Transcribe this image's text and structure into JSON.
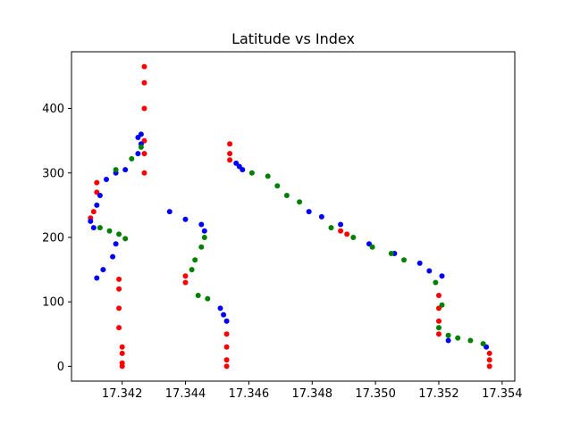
{
  "chart_data": {
    "type": "scatter",
    "title": "Latitude vs Index",
    "xlabel": "",
    "ylabel": "",
    "xlim": [
      17.3404,
      17.3544
    ],
    "ylim": [
      -23,
      488
    ],
    "grid": false,
    "legend": "none",
    "x_ticks": [
      17.342,
      17.344,
      17.346,
      17.348,
      17.35,
      17.352,
      17.354
    ],
    "x_tick_labels": [
      "17.342",
      "17.344",
      "17.346",
      "17.348",
      "17.350",
      "17.352",
      "17.354"
    ],
    "y_ticks": [
      0,
      100,
      200,
      300,
      400
    ],
    "y_tick_labels": [
      "0",
      "100",
      "200",
      "300",
      "400"
    ],
    "colors": {
      "red": "#ff0000",
      "blue": "#0000ff",
      "green": "#008000"
    },
    "series": [
      {
        "color": "red",
        "points": [
          [
            17.342,
            30
          ],
          [
            17.342,
            20
          ],
          [
            17.342,
            5
          ],
          [
            17.342,
            0
          ],
          [
            17.3419,
            60
          ],
          [
            17.3419,
            90
          ],
          [
            17.3419,
            120
          ],
          [
            17.3419,
            135
          ],
          [
            17.3412,
            285
          ],
          [
            17.3412,
            270
          ],
          [
            17.3411,
            240
          ],
          [
            17.341,
            230
          ],
          [
            17.3427,
            300
          ],
          [
            17.3427,
            330
          ],
          [
            17.3427,
            350
          ],
          [
            17.3427,
            400
          ],
          [
            17.3427,
            440
          ],
          [
            17.3427,
            465
          ],
          [
            17.344,
            140
          ],
          [
            17.344,
            130
          ],
          [
            17.3453,
            50
          ],
          [
            17.3453,
            30
          ],
          [
            17.3453,
            10
          ],
          [
            17.3453,
            0
          ],
          [
            17.3454,
            320
          ],
          [
            17.3454,
            330
          ],
          [
            17.3454,
            345
          ],
          [
            17.3489,
            210
          ],
          [
            17.3491,
            205
          ],
          [
            17.352,
            110
          ],
          [
            17.352,
            90
          ],
          [
            17.352,
            70
          ],
          [
            17.352,
            50
          ],
          [
            17.3536,
            20
          ],
          [
            17.3536,
            10
          ],
          [
            17.3536,
            0
          ]
        ]
      },
      {
        "color": "blue",
        "points": [
          [
            17.3412,
            137
          ],
          [
            17.3414,
            150
          ],
          [
            17.3417,
            170
          ],
          [
            17.3418,
            190
          ],
          [
            17.3411,
            215
          ],
          [
            17.341,
            225
          ],
          [
            17.3412,
            250
          ],
          [
            17.3413,
            265
          ],
          [
            17.3415,
            290
          ],
          [
            17.3418,
            300
          ],
          [
            17.3421,
            305
          ],
          [
            17.3425,
            330
          ],
          [
            17.3426,
            345
          ],
          [
            17.3425,
            355
          ],
          [
            17.3426,
            360
          ],
          [
            17.3435,
            240
          ],
          [
            17.344,
            228
          ],
          [
            17.3445,
            220
          ],
          [
            17.3446,
            210
          ],
          [
            17.3451,
            90
          ],
          [
            17.3452,
            80
          ],
          [
            17.3453,
            70
          ],
          [
            17.3457,
            310
          ],
          [
            17.3456,
            315
          ],
          [
            17.3458,
            305
          ],
          [
            17.3479,
            240
          ],
          [
            17.3483,
            232
          ],
          [
            17.3489,
            220
          ],
          [
            17.3498,
            190
          ],
          [
            17.3506,
            175
          ],
          [
            17.3514,
            160
          ],
          [
            17.3521,
            140
          ],
          [
            17.3517,
            148
          ],
          [
            17.3523,
            40
          ],
          [
            17.3535,
            30
          ]
        ]
      },
      {
        "color": "green",
        "points": [
          [
            17.3413,
            215
          ],
          [
            17.3416,
            210
          ],
          [
            17.3419,
            205
          ],
          [
            17.3421,
            198
          ],
          [
            17.3426,
            340
          ],
          [
            17.3423,
            322
          ],
          [
            17.3418,
            305
          ],
          [
            17.3442,
            150
          ],
          [
            17.3443,
            165
          ],
          [
            17.3445,
            185
          ],
          [
            17.3446,
            200
          ],
          [
            17.3444,
            110
          ],
          [
            17.3447,
            105
          ],
          [
            17.3461,
            300
          ],
          [
            17.3466,
            295
          ],
          [
            17.3469,
            280
          ],
          [
            17.3472,
            265
          ],
          [
            17.3476,
            255
          ],
          [
            17.3486,
            215
          ],
          [
            17.3493,
            200
          ],
          [
            17.3499,
            185
          ],
          [
            17.3505,
            175
          ],
          [
            17.3509,
            165
          ],
          [
            17.3519,
            130
          ],
          [
            17.3521,
            95
          ],
          [
            17.352,
            60
          ],
          [
            17.3523,
            48
          ],
          [
            17.3526,
            44
          ],
          [
            17.353,
            40
          ],
          [
            17.3534,
            35
          ]
        ]
      }
    ]
  }
}
